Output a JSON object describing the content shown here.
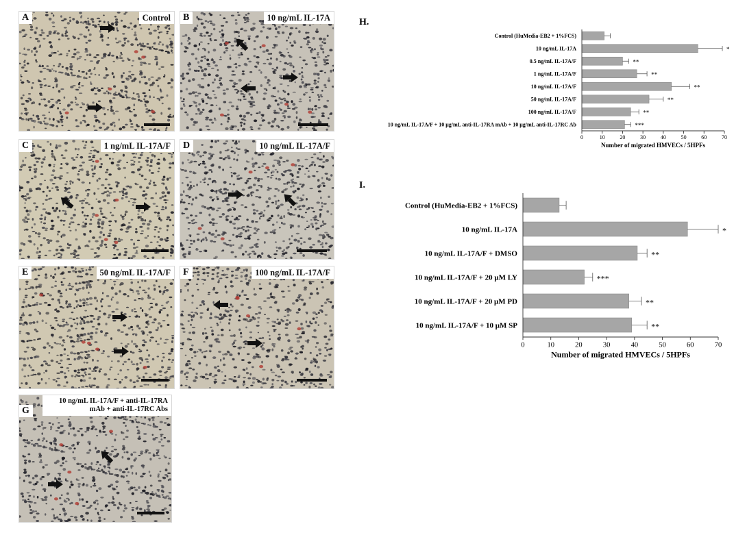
{
  "panels": [
    {
      "label": "A",
      "title": "Control"
    },
    {
      "label": "B",
      "title": "10 ng/mL IL-17A"
    },
    {
      "label": "C",
      "title": "1 ng/mL IL-17A/F"
    },
    {
      "label": "D",
      "title": "10 ng/mL IL-17A/F"
    },
    {
      "label": "E",
      "title": "50 ng/mL IL-17A/F"
    },
    {
      "label": "F",
      "title": "100 ng/mL IL-17A/F"
    },
    {
      "label": "G",
      "title": "10 ng/mL IL-17A/F + anti-IL-17RA mAb + anti-IL-17RC Abs"
    }
  ],
  "chart_data": [
    {
      "type": "bar",
      "orientation": "horizontal",
      "panel_label": "H.",
      "categories": [
        "Control (HuMedia-EB2 + 1%FCS)",
        "10 ng/mL IL-17A",
        "0.5 ng/mL IL-17A/F",
        "1 ng/mL IL-17A/F",
        "10 ng/mL IL-17A/F",
        "50 ng/mL IL-17A/F",
        "100 ng/mL IL-17A/F",
        "10 ng/mL IL-17A/F + 10 μg/mL anti-IL-17RA mAb + 10 μg/mL anti-IL-17RC Ab"
      ],
      "values": [
        11,
        57,
        20,
        27,
        44,
        33,
        24,
        21
      ],
      "errors": [
        3,
        12,
        3,
        5,
        9,
        7,
        4,
        3
      ],
      "significance": [
        "",
        "*",
        "**",
        "**",
        "**",
        "**",
        "**",
        "***"
      ],
      "xlabel": "Number of migrated HMVECs / 5HPFs",
      "xlim": [
        0,
        70
      ],
      "xticks": [
        0,
        10,
        20,
        30,
        40,
        50,
        60,
        70
      ],
      "bar_color": "#a6a6a6"
    },
    {
      "type": "bar",
      "orientation": "horizontal",
      "panel_label": "I.",
      "categories": [
        "Control (HuMedia-EB2 + 1%FCS)",
        "10 ng/mL IL-17A",
        "10 ng/mL IL-17A/F + DMSO",
        "10 ng/mL IL-17A/F + 20 μM LY",
        "10 ng/mL IL-17A/F + 20 μM PD",
        "10 ng/mL IL-17A/F + 10 μM SP"
      ],
      "values": [
        13,
        59,
        41,
        22,
        38,
        39
      ],
      "errors": [
        2.5,
        11,
        3.5,
        3,
        4.5,
        5.5
      ],
      "significance": [
        "",
        "*",
        "**",
        "***",
        "**",
        "**"
      ],
      "xlabel": "Number of migrated HMVECs / 5HPFs",
      "xlim": [
        0,
        70
      ],
      "xticks": [
        0,
        10,
        20,
        30,
        40,
        50,
        60,
        70
      ],
      "bar_color": "#a6a6a6"
    }
  ]
}
